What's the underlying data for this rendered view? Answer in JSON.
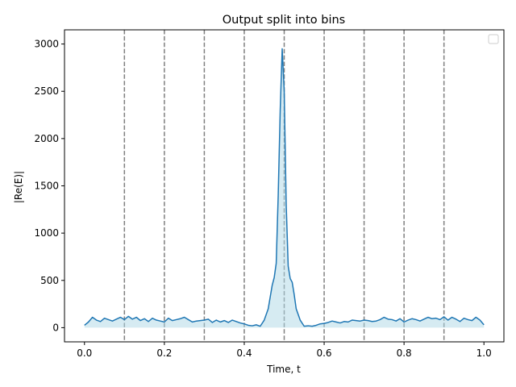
{
  "chart_data": {
    "type": "line",
    "title": "Output split into bins",
    "xlabel": "Time, t",
    "ylabel": "|Re(E)|",
    "xlim": [
      -0.05,
      1.05
    ],
    "ylim": [
      -150,
      3150
    ],
    "xticks": [
      0.0,
      0.2,
      0.4,
      0.6,
      0.8,
      1.0
    ],
    "xtick_labels": [
      "0.0",
      "0.2",
      "0.4",
      "0.6",
      "0.8",
      "1.0"
    ],
    "yticks": [
      0,
      500,
      1000,
      1500,
      2000,
      2500,
      3000
    ],
    "ytick_labels": [
      "0",
      "500",
      "1000",
      "1500",
      "2000",
      "2500",
      "3000"
    ],
    "grid": false,
    "legend": "top-right",
    "bin_boundaries": [
      0.1,
      0.2,
      0.3,
      0.4,
      0.5,
      0.6,
      0.7,
      0.8,
      0.9
    ],
    "series": [
      {
        "x": [
          0.0,
          0.01,
          0.02,
          0.03,
          0.04,
          0.05,
          0.06,
          0.07,
          0.08,
          0.09,
          0.1,
          0.11,
          0.12,
          0.13,
          0.14,
          0.15,
          0.16,
          0.17,
          0.18,
          0.19,
          0.2,
          0.21,
          0.22,
          0.23,
          0.24,
          0.25,
          0.26,
          0.27,
          0.28,
          0.29,
          0.3,
          0.31,
          0.32,
          0.33,
          0.34,
          0.35,
          0.36,
          0.37,
          0.38,
          0.39,
          0.4,
          0.41,
          0.42,
          0.43,
          0.44,
          0.45,
          0.46,
          0.47,
          0.475,
          0.48,
          0.485,
          0.49,
          0.495,
          0.5,
          0.505,
          0.51,
          0.515,
          0.52,
          0.525,
          0.53,
          0.54,
          0.55,
          0.56,
          0.57,
          0.58,
          0.59,
          0.6,
          0.61,
          0.62,
          0.63,
          0.64,
          0.65,
          0.66,
          0.67,
          0.68,
          0.69,
          0.7,
          0.71,
          0.72,
          0.73,
          0.74,
          0.75,
          0.76,
          0.77,
          0.78,
          0.79,
          0.8,
          0.81,
          0.82,
          0.83,
          0.84,
          0.85,
          0.86,
          0.87,
          0.88,
          0.89,
          0.9,
          0.91,
          0.92,
          0.93,
          0.94,
          0.95,
          0.96,
          0.97,
          0.98,
          0.99,
          1.0
        ],
        "y": [
          25,
          60,
          110,
          80,
          65,
          100,
          85,
          70,
          90,
          110,
          85,
          120,
          90,
          110,
          75,
          95,
          65,
          100,
          80,
          70,
          60,
          100,
          75,
          85,
          95,
          110,
          85,
          60,
          70,
          75,
          80,
          90,
          55,
          80,
          60,
          75,
          55,
          80,
          65,
          50,
          40,
          25,
          20,
          30,
          15,
          80,
          200,
          450,
          530,
          680,
          1400,
          2300,
          2950,
          2500,
          1300,
          650,
          520,
          480,
          350,
          200,
          80,
          15,
          20,
          15,
          25,
          40,
          45,
          55,
          70,
          60,
          50,
          65,
          60,
          80,
          75,
          70,
          80,
          75,
          65,
          70,
          85,
          110,
          90,
          85,
          70,
          95,
          60,
          80,
          95,
          85,
          70,
          90,
          110,
          95,
          100,
          85,
          115,
          80,
          110,
          90,
          65,
          100,
          85,
          75,
          110,
          80,
          30
        ]
      }
    ]
  }
}
